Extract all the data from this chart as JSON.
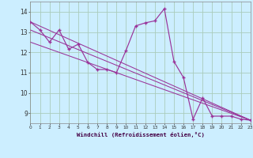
{
  "xlabel": "Windchill (Refroidissement éolien,°C)",
  "bg_color": "#cceeff",
  "line_color": "#993399",
  "grid_color": "#aaccbb",
  "xmin": 0,
  "xmax": 23,
  "ymin": 8.5,
  "ymax": 14.5,
  "yticks": [
    9,
    10,
    11,
    12,
    13,
    14
  ],
  "xticks": [
    0,
    1,
    2,
    3,
    4,
    5,
    6,
    7,
    8,
    9,
    10,
    11,
    12,
    13,
    14,
    15,
    16,
    17,
    18,
    19,
    20,
    21,
    22,
    23
  ],
  "series1_x": [
    0,
    1,
    2,
    3,
    4,
    5,
    6,
    7,
    8,
    9,
    10,
    11,
    12,
    13,
    14,
    15,
    16,
    17,
    18,
    19,
    20,
    21,
    22,
    23
  ],
  "series1_y": [
    13.5,
    13.1,
    12.5,
    13.1,
    12.15,
    12.4,
    11.5,
    11.15,
    11.15,
    11.0,
    12.1,
    13.3,
    13.45,
    13.55,
    14.15,
    11.55,
    10.75,
    8.7,
    9.75,
    8.85,
    8.85,
    8.85,
    8.7,
    8.65
  ],
  "linear1_y_start": 13.5,
  "linear2_y_start": 13.1,
  "linear3_y_start": 12.5,
  "linear_y_end": 8.65
}
